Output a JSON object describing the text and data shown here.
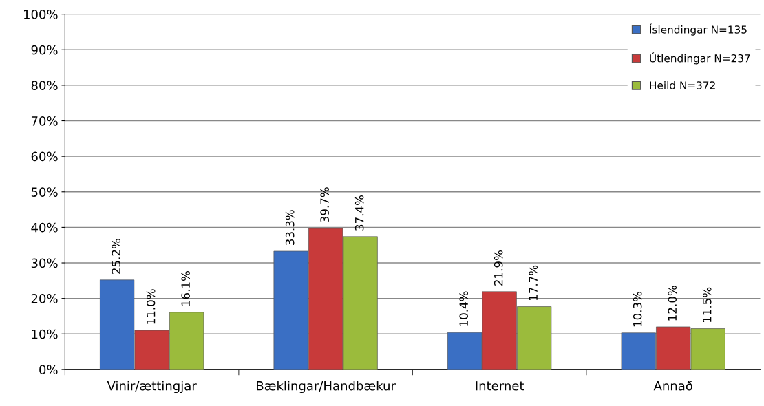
{
  "chart_data": {
    "type": "bar",
    "categories": [
      "Vinir/ættingjar",
      "Bæklingar/Handbækur",
      "Internet",
      "Annað"
    ],
    "series": [
      {
        "name": "Íslendingar N=135",
        "color": "#3a6fc4",
        "values": [
          25.2,
          33.3,
          10.4,
          10.3
        ],
        "value_labels": [
          "25.2%",
          "33.3%",
          "10.4%",
          "10.3%"
        ]
      },
      {
        "name": "Útlendingar N=237",
        "color": "#c83a3a",
        "values": [
          11.0,
          39.7,
          21.9,
          12.0
        ],
        "value_labels": [
          "11.0%",
          "39.7%",
          "21.9%",
          "12.0%"
        ]
      },
      {
        "name": "Heild N=372",
        "color": "#9bbb3c",
        "values": [
          16.1,
          37.4,
          17.7,
          11.5
        ],
        "value_labels": [
          "16.1%",
          "37.4%",
          "17.7%",
          "11.5%"
        ]
      }
    ],
    "ylim": [
      0,
      100
    ],
    "yticks": [
      {
        "value": 0,
        "label": "0%"
      },
      {
        "value": 10,
        "label": "10%"
      },
      {
        "value": 20,
        "label": "20%"
      },
      {
        "value": 30,
        "label": "30%"
      },
      {
        "value": 40,
        "label": "40%"
      },
      {
        "value": 50,
        "label": "50%"
      },
      {
        "value": 60,
        "label": "60%"
      },
      {
        "value": 70,
        "label": "70%"
      },
      {
        "value": 80,
        "label": "80%"
      },
      {
        "value": 90,
        "label": "90%"
      },
      {
        "value": 100,
        "label": "100%"
      }
    ],
    "grid": "y",
    "legend": "top right"
  }
}
